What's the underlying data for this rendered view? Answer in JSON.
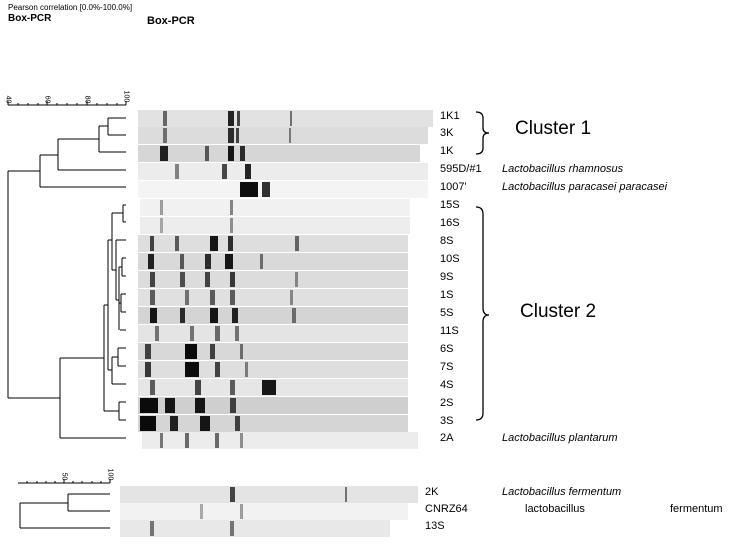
{
  "header": {
    "similarity_label": "Pearson correlation [0.0%-100.0%]",
    "method_left": "Box-PCR",
    "method_right": "Box-PCR"
  },
  "panel_top": {
    "scale_ticks": [
      "40",
      "60",
      "80",
      "100"
    ],
    "lanes": [
      {
        "label": "1K1",
        "shade": "#e2e2e2"
      },
      {
        "label": "3K",
        "shade": "#dcdcdc"
      },
      {
        "label": "1K",
        "shade": "#d6d6d6"
      },
      {
        "label": "595D/#1",
        "shade": "#ececec"
      },
      {
        "label": "1007'",
        "shade": "#f4f4f4"
      },
      {
        "label": "15S",
        "shade": "#f1f1f1"
      },
      {
        "label": "16S",
        "shade": "#ededed"
      },
      {
        "label": "8S",
        "shade": "#dedede"
      },
      {
        "label": "10S",
        "shade": "#d9d9d9"
      },
      {
        "label": "9S",
        "shade": "#dcdcdc"
      },
      {
        "label": "1S",
        "shade": "#e0e0e0"
      },
      {
        "label": "5S",
        "shade": "#d4d4d4"
      },
      {
        "label": "11S",
        "shade": "#e4e4e4"
      },
      {
        "label": "6S",
        "shade": "#d8d8d8"
      },
      {
        "label": "7S",
        "shade": "#dedede"
      },
      {
        "label": "4S",
        "shade": "#e6e6e6"
      },
      {
        "label": "2S",
        "shade": "#cfcfcf"
      },
      {
        "label": "3S",
        "shade": "#d5d5d5"
      },
      {
        "label": "2A",
        "shade": "#ececec"
      }
    ],
    "species": {
      "rhamnosus": "Lactobacillus rhamnosus",
      "paracasei": "Lactobacillus paracasei paracasei",
      "plantarum": "Lactobacillus plantarum"
    },
    "clusters": {
      "cluster1": "Cluster 1",
      "cluster2": "Cluster 2"
    }
  },
  "panel_bottom": {
    "scale_ticks": [
      "50",
      "100"
    ],
    "lanes": [
      {
        "label": "2K",
        "shade": "#e4e4e4"
      },
      {
        "label": "CNRZ64",
        "shade": "#f2f2f2"
      },
      {
        "label": "13S",
        "shade": "#e8e8e8"
      }
    ],
    "species": {
      "fermentum": "Lactobacillus fermentum",
      "cnrz_word1": "lactobacillus",
      "cnrz_word2": "fermentum"
    }
  }
}
